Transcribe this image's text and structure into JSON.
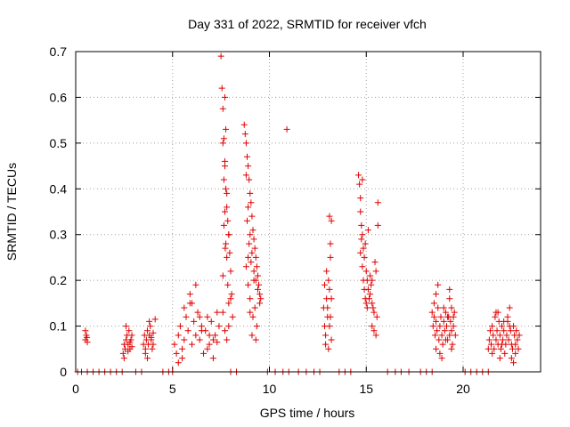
{
  "chart_data": {
    "type": "scatter",
    "title": "Day 331 of 2022, SRMTID for receiver vfch",
    "xlabel": "GPS time / hours",
    "ylabel": "SRMTID / TECUs",
    "xlim": [
      0,
      24
    ],
    "ylim": [
      0,
      0.7
    ],
    "xticks": [
      0,
      5,
      10,
      15,
      20
    ],
    "xtick_labels": [
      "0",
      "5",
      "10",
      "15",
      "20"
    ],
    "yticks": [
      0,
      0.1,
      0.2,
      0.3,
      0.4,
      0.5,
      0.6,
      0.7
    ],
    "ytick_labels": [
      "0",
      "0.1",
      "0.2",
      "0.3",
      "0.4",
      "0.5",
      "0.6",
      "0.7"
    ],
    "grid": true,
    "marker": "+",
    "color": "#e00000",
    "series": [
      {
        "name": "SRMTID",
        "x": [
          0.1,
          0.3,
          0.6,
          0.9,
          1.2,
          1.5,
          1.8,
          2.1,
          2.4,
          3.1,
          3.4,
          4.5,
          4.8,
          5.0,
          8.0,
          8.3,
          9.9,
          10.3,
          10.7,
          11.0,
          11.5,
          11.9,
          12.3,
          12.6,
          13.6,
          13.9,
          14.2,
          16.1,
          16.5,
          16.8,
          17.2,
          17.8,
          18.1,
          18.4,
          20.1,
          20.4,
          20.7,
          21.0,
          21.3,
          0.5,
          0.55,
          0.6,
          0.5,
          0.58,
          2.45,
          2.5,
          2.55,
          2.6,
          2.65,
          2.7,
          2.75,
          2.8,
          2.85,
          2.9,
          2.5,
          2.6,
          2.7,
          2.8,
          2.9,
          3.5,
          3.55,
          3.6,
          3.65,
          3.7,
          3.75,
          3.8,
          3.85,
          3.9,
          3.95,
          4.0,
          4.1,
          3.6,
          3.7,
          3.8,
          3.9,
          4.0,
          5.1,
          5.2,
          5.3,
          5.4,
          5.5,
          5.6,
          5.7,
          5.8,
          5.9,
          6.0,
          6.1,
          6.2,
          6.3,
          6.4,
          6.5,
          6.6,
          6.7,
          6.8,
          6.9,
          7.0,
          7.1,
          7.2,
          7.3,
          7.4,
          5.3,
          5.6,
          5.9,
          6.2,
          6.5,
          6.8,
          7.1,
          5.5,
          6.0,
          6.4,
          6.9,
          7.3,
          7.5,
          7.55,
          7.6,
          7.65,
          7.7,
          7.75,
          7.8,
          7.85,
          7.9,
          7.95,
          8.0,
          8.05,
          8.1,
          7.6,
          7.65,
          7.7,
          7.75,
          7.8,
          7.85,
          7.9,
          7.6,
          7.7,
          7.8,
          7.9,
          8.0,
          7.6,
          7.7,
          7.8,
          7.9,
          7.7,
          7.75,
          7.65,
          7.72,
          8.7,
          8.75,
          8.8,
          8.85,
          8.9,
          8.95,
          9.0,
          9.05,
          9.1,
          9.15,
          9.2,
          9.25,
          9.3,
          9.35,
          9.4,
          9.45,
          9.5,
          9.55,
          8.8,
          8.9,
          9.0,
          9.1,
          9.2,
          9.3,
          9.4,
          9.5,
          8.85,
          8.95,
          9.05,
          9.15,
          9.25,
          9.35,
          8.9,
          9.0,
          9.1,
          9.2,
          8.8,
          8.9,
          9.0,
          9.3,
          10.9,
          12.8,
          12.85,
          12.9,
          12.95,
          13.0,
          13.05,
          13.1,
          13.15,
          13.2,
          12.9,
          13.0,
          13.1,
          13.2,
          12.85,
          12.95,
          13.05,
          13.15,
          13.1,
          13.15,
          13.2,
          14.6,
          14.65,
          14.7,
          14.75,
          14.8,
          14.85,
          14.9,
          14.95,
          15.0,
          15.05,
          15.1,
          15.15,
          15.2,
          15.25,
          15.3,
          15.35,
          15.4,
          15.45,
          15.5,
          15.55,
          15.6,
          14.7,
          14.8,
          14.9,
          15.0,
          15.1,
          15.2,
          15.3,
          15.4,
          14.75,
          14.85,
          14.95,
          15.05,
          14.8,
          14.7,
          15.6,
          15.5,
          15.3,
          18.4,
          18.45,
          18.5,
          18.55,
          18.6,
          18.65,
          18.7,
          18.75,
          18.8,
          18.85,
          18.9,
          18.95,
          19.0,
          19.05,
          19.1,
          19.15,
          19.2,
          19.25,
          19.3,
          19.35,
          19.4,
          19.45,
          19.5,
          19.55,
          19.6,
          18.5,
          18.6,
          18.7,
          18.8,
          18.9,
          19.0,
          19.1,
          19.2,
          19.3,
          19.4,
          19.5,
          18.6,
          19.3,
          19.4,
          21.3,
          21.35,
          21.4,
          21.45,
          21.5,
          21.55,
          21.6,
          21.65,
          21.7,
          21.75,
          21.8,
          21.85,
          21.9,
          21.95,
          22.0,
          22.05,
          22.1,
          22.15,
          22.2,
          22.25,
          22.3,
          22.35,
          22.4,
          22.45,
          22.5,
          22.55,
          22.6,
          22.65,
          22.7,
          22.75,
          22.8,
          22.85,
          22.9,
          21.5,
          21.7,
          21.9,
          22.1,
          22.3,
          22.5,
          22.7,
          21.8,
          22.0,
          22.4,
          22.6
        ],
        "y": [
          0,
          0,
          0,
          0,
          0,
          0,
          0,
          0,
          0,
          0,
          0,
          0,
          0,
          0,
          0,
          0,
          0,
          0,
          0,
          0,
          0,
          0,
          0,
          0,
          0,
          0,
          0,
          0,
          0,
          0,
          0,
          0,
          0,
          0,
          0,
          0,
          0,
          0,
          0,
          0.07,
          0.08,
          0.065,
          0.09,
          0.075,
          0.04,
          0.06,
          0.05,
          0.07,
          0.08,
          0.06,
          0.09,
          0.05,
          0.07,
          0.08,
          0.03,
          0.1,
          0.045,
          0.065,
          0.055,
          0.06,
          0.08,
          0.05,
          0.07,
          0.09,
          0.06,
          0.08,
          0.1,
          0.07,
          0.05,
          0.06,
          0.115,
          0.04,
          0.03,
          0.11,
          0.075,
          0.085,
          0.06,
          0.04,
          0.08,
          0.1,
          0.05,
          0.07,
          0.12,
          0.09,
          0.15,
          0.06,
          0.11,
          0.08,
          0.13,
          0.07,
          0.1,
          0.04,
          0.09,
          0.12,
          0.06,
          0.11,
          0.03,
          0.08,
          0.13,
          0.1,
          0.02,
          0.14,
          0.17,
          0.19,
          0.09,
          0.05,
          0.07,
          0.03,
          0.15,
          0.12,
          0.08,
          0.065,
          0.69,
          0.62,
          0.575,
          0.51,
          0.45,
          0.4,
          0.36,
          0.33,
          0.3,
          0.26,
          0.22,
          0.17,
          0.12,
          0.5,
          0.42,
          0.35,
          0.28,
          0.25,
          0.19,
          0.15,
          0.13,
          0.09,
          0.07,
          0.1,
          0.16,
          0.21,
          0.46,
          0.39,
          0.3,
          0.6,
          0.53,
          0.32,
          0.27,
          0.54,
          0.52,
          0.5,
          0.47,
          0.45,
          0.42,
          0.39,
          0.37,
          0.34,
          0.31,
          0.29,
          0.27,
          0.25,
          0.23,
          0.21,
          0.19,
          0.17,
          0.16,
          0.43,
          0.36,
          0.3,
          0.26,
          0.22,
          0.2,
          0.18,
          0.15,
          0.33,
          0.28,
          0.24,
          0.12,
          0.14,
          0.1,
          0.25,
          0.16,
          0.08,
          0.2,
          0.23,
          0.19,
          0.13,
          0.07,
          0.53,
          0.14,
          0.1,
          0.08,
          0.16,
          0.12,
          0.2,
          0.18,
          0.25,
          0.33,
          0.06,
          0.14,
          0.1,
          0.07,
          0.19,
          0.22,
          0.05,
          0.12,
          0.34,
          0.28,
          0.16,
          0.43,
          0.41,
          0.38,
          0.32,
          0.3,
          0.27,
          0.25,
          0.28,
          0.22,
          0.2,
          0.18,
          0.16,
          0.21,
          0.19,
          0.15,
          0.14,
          0.13,
          0.24,
          0.22,
          0.12,
          0.37,
          0.26,
          0.23,
          0.18,
          0.15,
          0.31,
          0.17,
          0.1,
          0.09,
          0.29,
          0.2,
          0.16,
          0.14,
          0.42,
          0.35,
          0.32,
          0.08,
          0.2,
          0.13,
          0.1,
          0.12,
          0.08,
          0.11,
          0.09,
          0.14,
          0.07,
          0.1,
          0.12,
          0.08,
          0.06,
          0.11,
          0.09,
          0.13,
          0.1,
          0.07,
          0.12,
          0.08,
          0.11,
          0.09,
          0.06,
          0.1,
          0.13,
          0.08,
          0.15,
          0.05,
          0.19,
          0.04,
          0.03,
          0.14,
          0.07,
          0.12,
          0.16,
          0.05,
          0.12,
          0.17,
          0.18,
          0.14,
          0.05,
          0.07,
          0.09,
          0.06,
          0.1,
          0.08,
          0.05,
          0.12,
          0.07,
          0.09,
          0.06,
          0.11,
          0.08,
          0.05,
          0.1,
          0.07,
          0.09,
          0.04,
          0.06,
          0.08,
          0.11,
          0.07,
          0.14,
          0.09,
          0.06,
          0.05,
          0.1,
          0.08,
          0.06,
          0.09,
          0.07,
          0.05,
          0.08,
          0.04,
          0.13,
          0.03,
          0.11,
          0.12,
          0.03,
          0.04,
          0.13,
          0.06,
          0.1,
          0.02
        ]
      }
    ]
  }
}
